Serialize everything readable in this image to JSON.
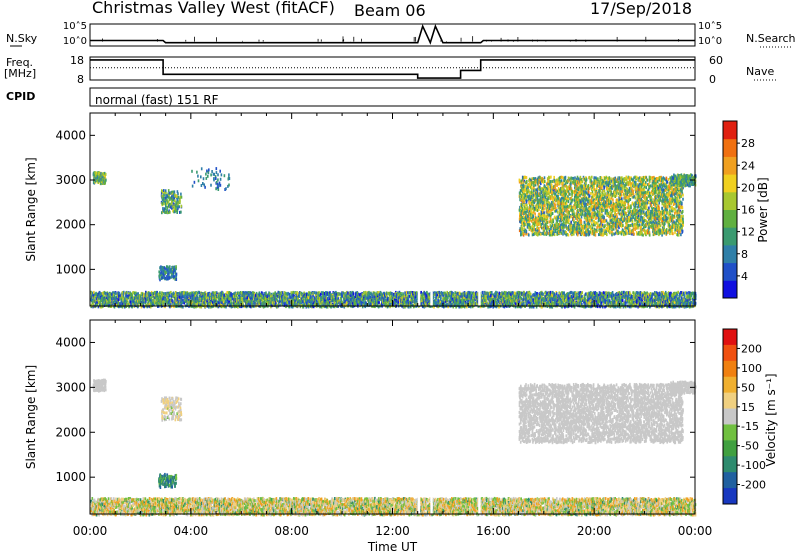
{
  "header": {
    "station": "Christmas Valley West (fitACF)",
    "beam": "Beam 06",
    "date": "17/Sep/2018",
    "cpid_program": "normal (fast) 151 RF"
  },
  "side_labels": {
    "nsky": "N.Sky",
    "freq_line1": "Freq.",
    "freq_line2": "[MHz]",
    "cpid": "CPID",
    "nsearch": "N.Search",
    "nave": "Nave"
  },
  "chart_data": [
    {
      "type": "line",
      "name": "noise-panel",
      "ylabel_left": "N.Sky",
      "ylabel_right": "N.Search",
      "left_ticks": [
        "10^5",
        "10^0"
      ],
      "right_ticks": [
        "10^5",
        "10^0"
      ],
      "series": [
        {
          "name": "N.Sky",
          "style": "solid",
          "x": [
            0.0,
            2.9,
            3.0,
            13.0,
            13.2,
            13.5,
            13.7,
            14.0,
            15.5,
            15.6,
            24.0
          ],
          "y": [
            0.25,
            0.25,
            0.15,
            0.15,
            0.9,
            0.15,
            0.9,
            0.15,
            0.15,
            0.25,
            0.25
          ]
        }
      ]
    },
    {
      "type": "line",
      "name": "frequency-panel",
      "ylabel_left": "Freq. [MHz]",
      "ylabel_right": "Nave",
      "left_ticks": [
        18,
        8
      ],
      "right_ticks": [
        60,
        0
      ],
      "series": [
        {
          "name": "Freq",
          "style": "solid",
          "x": [
            0.0,
            2.9,
            2.9,
            13.0,
            13.0,
            14.7,
            14.7,
            15.5,
            15.5,
            24.0
          ],
          "y": [
            17.5,
            17.5,
            10.0,
            10.0,
            8.0,
            8.0,
            12.0,
            12.0,
            17.5,
            17.5
          ]
        },
        {
          "name": "Nave",
          "style": "dotted",
          "x": [
            0.0,
            24.0
          ],
          "y": [
            33,
            33
          ]
        }
      ]
    },
    {
      "type": "heatmap",
      "name": "power-panel",
      "xlabel": "",
      "ylabel": "Slant Range [km]",
      "xlim": [
        0,
        24
      ],
      "ylim": [
        180,
        4500
      ],
      "yticks": [
        1000,
        2000,
        3000,
        4000
      ],
      "colorbar": {
        "label": "Power [dB]",
        "min": 0,
        "max": 32,
        "ticks": [
          4,
          8,
          12,
          16,
          20,
          24,
          28
        ],
        "colors": [
          "#1010e0",
          "#2050c8",
          "#2f7fa8",
          "#3a9a70",
          "#60b040",
          "#a8c830",
          "#f0d020",
          "#f0a020",
          "#f07010",
          "#e02010"
        ]
      },
      "scatter_regions": [
        {
          "t0": 0.0,
          "t1": 24.0,
          "r0": 190,
          "r1": 520,
          "density": 0.5,
          "v0": 2,
          "v1": 20
        },
        {
          "t0": 0.1,
          "t1": 0.6,
          "r0": 2950,
          "r1": 3200,
          "density": 0.6,
          "v0": 6,
          "v1": 22
        },
        {
          "t0": 2.8,
          "t1": 3.6,
          "r0": 2300,
          "r1": 2800,
          "density": 0.25,
          "v0": 4,
          "v1": 20
        },
        {
          "t0": 2.7,
          "t1": 3.4,
          "r0": 800,
          "r1": 1100,
          "density": 0.35,
          "v0": 4,
          "v1": 14
        },
        {
          "t0": 4.0,
          "t1": 5.5,
          "r0": 2800,
          "r1": 3300,
          "density": 0.06,
          "v0": 4,
          "v1": 12
        },
        {
          "t0": 17.0,
          "t1": 23.5,
          "r0": 1800,
          "r1": 3100,
          "density": 0.3,
          "v0": 6,
          "v1": 26
        },
        {
          "t0": 23.0,
          "t1": 24.0,
          "r0": 2900,
          "r1": 3150,
          "density": 0.5,
          "v0": 6,
          "v1": 18
        }
      ]
    },
    {
      "type": "heatmap",
      "name": "velocity-panel",
      "xlabel": "Time UT",
      "ylabel": "Slant Range [km]",
      "xlim": [
        0,
        24
      ],
      "ylim": [
        180,
        4500
      ],
      "yticks": [
        1000,
        2000,
        3000,
        4000
      ],
      "xtick_labels": [
        "00:00",
        "04:00",
        "08:00",
        "12:00",
        "16:00",
        "20:00",
        "00:00"
      ],
      "colorbar": {
        "label": "Velocity [m s⁻¹]",
        "min": -250,
        "max": 250,
        "ticks": [
          200,
          100,
          50,
          15,
          -15,
          -50,
          -100,
          -200
        ],
        "colors": [
          "#e01010",
          "#f05010",
          "#f08010",
          "#f0b030",
          "#f0d080",
          "#c8c8c8",
          "#70c040",
          "#40a040",
          "#2e8b6e",
          "#2060a0",
          "#1838c0"
        ]
      },
      "scatter_regions": [
        {
          "t0": 0.0,
          "t1": 24.0,
          "r0": 190,
          "r1": 560,
          "density": 0.5,
          "v0": -80,
          "v1": 60
        },
        {
          "t0": 0.1,
          "t1": 0.6,
          "r0": 2950,
          "r1": 3200,
          "density": 0.6,
          "v0": -10,
          "v1": 10
        },
        {
          "t0": 2.8,
          "t1": 3.6,
          "r0": 2300,
          "r1": 2800,
          "density": 0.25,
          "v0": -40,
          "v1": 20
        },
        {
          "t0": 2.7,
          "t1": 3.4,
          "r0": 800,
          "r1": 1100,
          "density": 0.35,
          "v0": 30,
          "v1": 120
        },
        {
          "t0": 17.0,
          "t1": 23.5,
          "r0": 1800,
          "r1": 3100,
          "density": 0.3,
          "v0": -12,
          "v1": 12
        },
        {
          "t0": 23.0,
          "t1": 24.0,
          "r0": 2900,
          "r1": 3150,
          "density": 0.5,
          "v0": -10,
          "v1": 10
        }
      ]
    }
  ]
}
